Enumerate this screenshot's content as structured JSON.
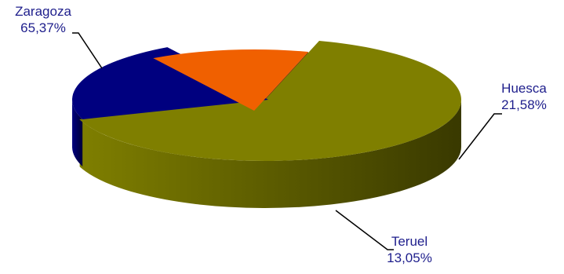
{
  "chart_data": {
    "type": "pie",
    "style": "3d-exploded",
    "title": "",
    "legend": "none",
    "slices": [
      {
        "name": "Zaragoza",
        "value": 65.37,
        "label": "65,37%",
        "color": "#7f7f00",
        "label_color": "#1e1e8c"
      },
      {
        "name": "Huesca",
        "value": 21.58,
        "label": "21,58%",
        "color": "#00007f",
        "label_color": "#1e1e8c"
      },
      {
        "name": "Teruel",
        "value": 13.05,
        "label": "13,05%",
        "color": "#f06000",
        "label_color": "#1e1e8c"
      }
    ]
  }
}
